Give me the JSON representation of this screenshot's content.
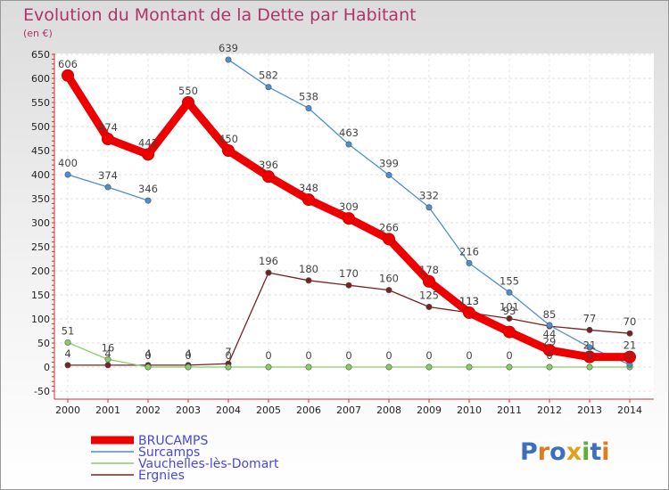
{
  "chart_data": {
    "type": "line",
    "title": "Evolution du Montant de la Dette par Habitant",
    "subtitle": "(en €)",
    "xlabel": "",
    "ylabel": "",
    "categories": [
      "2000",
      "2001",
      "2002",
      "2003",
      "2004",
      "2005",
      "2006",
      "2007",
      "2008",
      "2009",
      "2010",
      "2011",
      "2012",
      "2013",
      "2014"
    ],
    "ylim": [
      -50,
      650
    ],
    "yticks": [
      -50,
      0,
      50,
      100,
      150,
      200,
      250,
      300,
      350,
      400,
      450,
      500,
      550,
      600,
      650
    ],
    "grid": true,
    "legend_position": "bottom-left",
    "series": [
      {
        "name": "BRUCAMPS",
        "color": "#ee0000",
        "values": [
          606,
          474,
          442,
          550,
          450,
          396,
          348,
          309,
          266,
          178,
          113,
          73,
          35,
          21,
          21
        ],
        "labels": [
          "606",
          "474",
          "442",
          "550",
          "450",
          "396",
          "348",
          "309",
          "266",
          "178",
          "113",
          "",
          "",
          "",
          "21"
        ]
      },
      {
        "name": "Surcamps",
        "color": "#4d8fcc",
        "values": [
          400,
          374,
          346,
          null,
          639,
          582,
          538,
          463,
          399,
          332,
          216,
          155,
          87,
          41,
          5
        ],
        "labels": [
          "400",
          "374",
          "346",
          "",
          "639",
          "582",
          "538",
          "463",
          "399",
          "332",
          "216",
          "155",
          "",
          "",
          ""
        ]
      },
      {
        "name": "Vauchelles-lès-Domart",
        "color": "#88cc66",
        "values": [
          51,
          16,
          0,
          0,
          0,
          0,
          0,
          0,
          0,
          0,
          0,
          0,
          0,
          0,
          0
        ],
        "labels": [
          "51",
          "16",
          "0",
          "0",
          "0",
          "0",
          "0",
          "0",
          "0",
          "0",
          "0",
          "0",
          "0",
          "",
          ""
        ]
      },
      {
        "name": "Ergnies",
        "color": "#772222",
        "values": [
          4,
          4,
          4,
          4,
          7,
          196,
          180,
          170,
          160,
          125,
          113,
          101,
          85,
          77,
          70
        ],
        "labels": [
          "4",
          "4",
          "4",
          "4",
          "7",
          "196",
          "180",
          "170",
          "160",
          "125",
          "113",
          "101",
          "85",
          "77",
          "70"
        ]
      }
    ],
    "extra_labels": [
      {
        "text": "44",
        "x": "2012",
        "y": 44
      },
      {
        "text": "29",
        "x": "2012",
        "y": 29
      },
      {
        "text": "21",
        "x": "2013",
        "y": 21
      },
      {
        "text": "0",
        "x": "2013",
        "y": 0
      },
      {
        "text": "0",
        "x": "2014",
        "y": 0
      },
      {
        "text": "93",
        "x": "2011",
        "y": 93
      }
    ]
  },
  "logo": {
    "text": "Proxiti",
    "letters": [
      "P",
      "r",
      "o",
      "x",
      "i",
      "t",
      "i"
    ],
    "colors": [
      "#3d6fc0",
      "#e07b1e",
      "#3d6fc0",
      "#e0a01e",
      "#5fae3a",
      "#3d6fc0",
      "#e07b1e"
    ]
  }
}
